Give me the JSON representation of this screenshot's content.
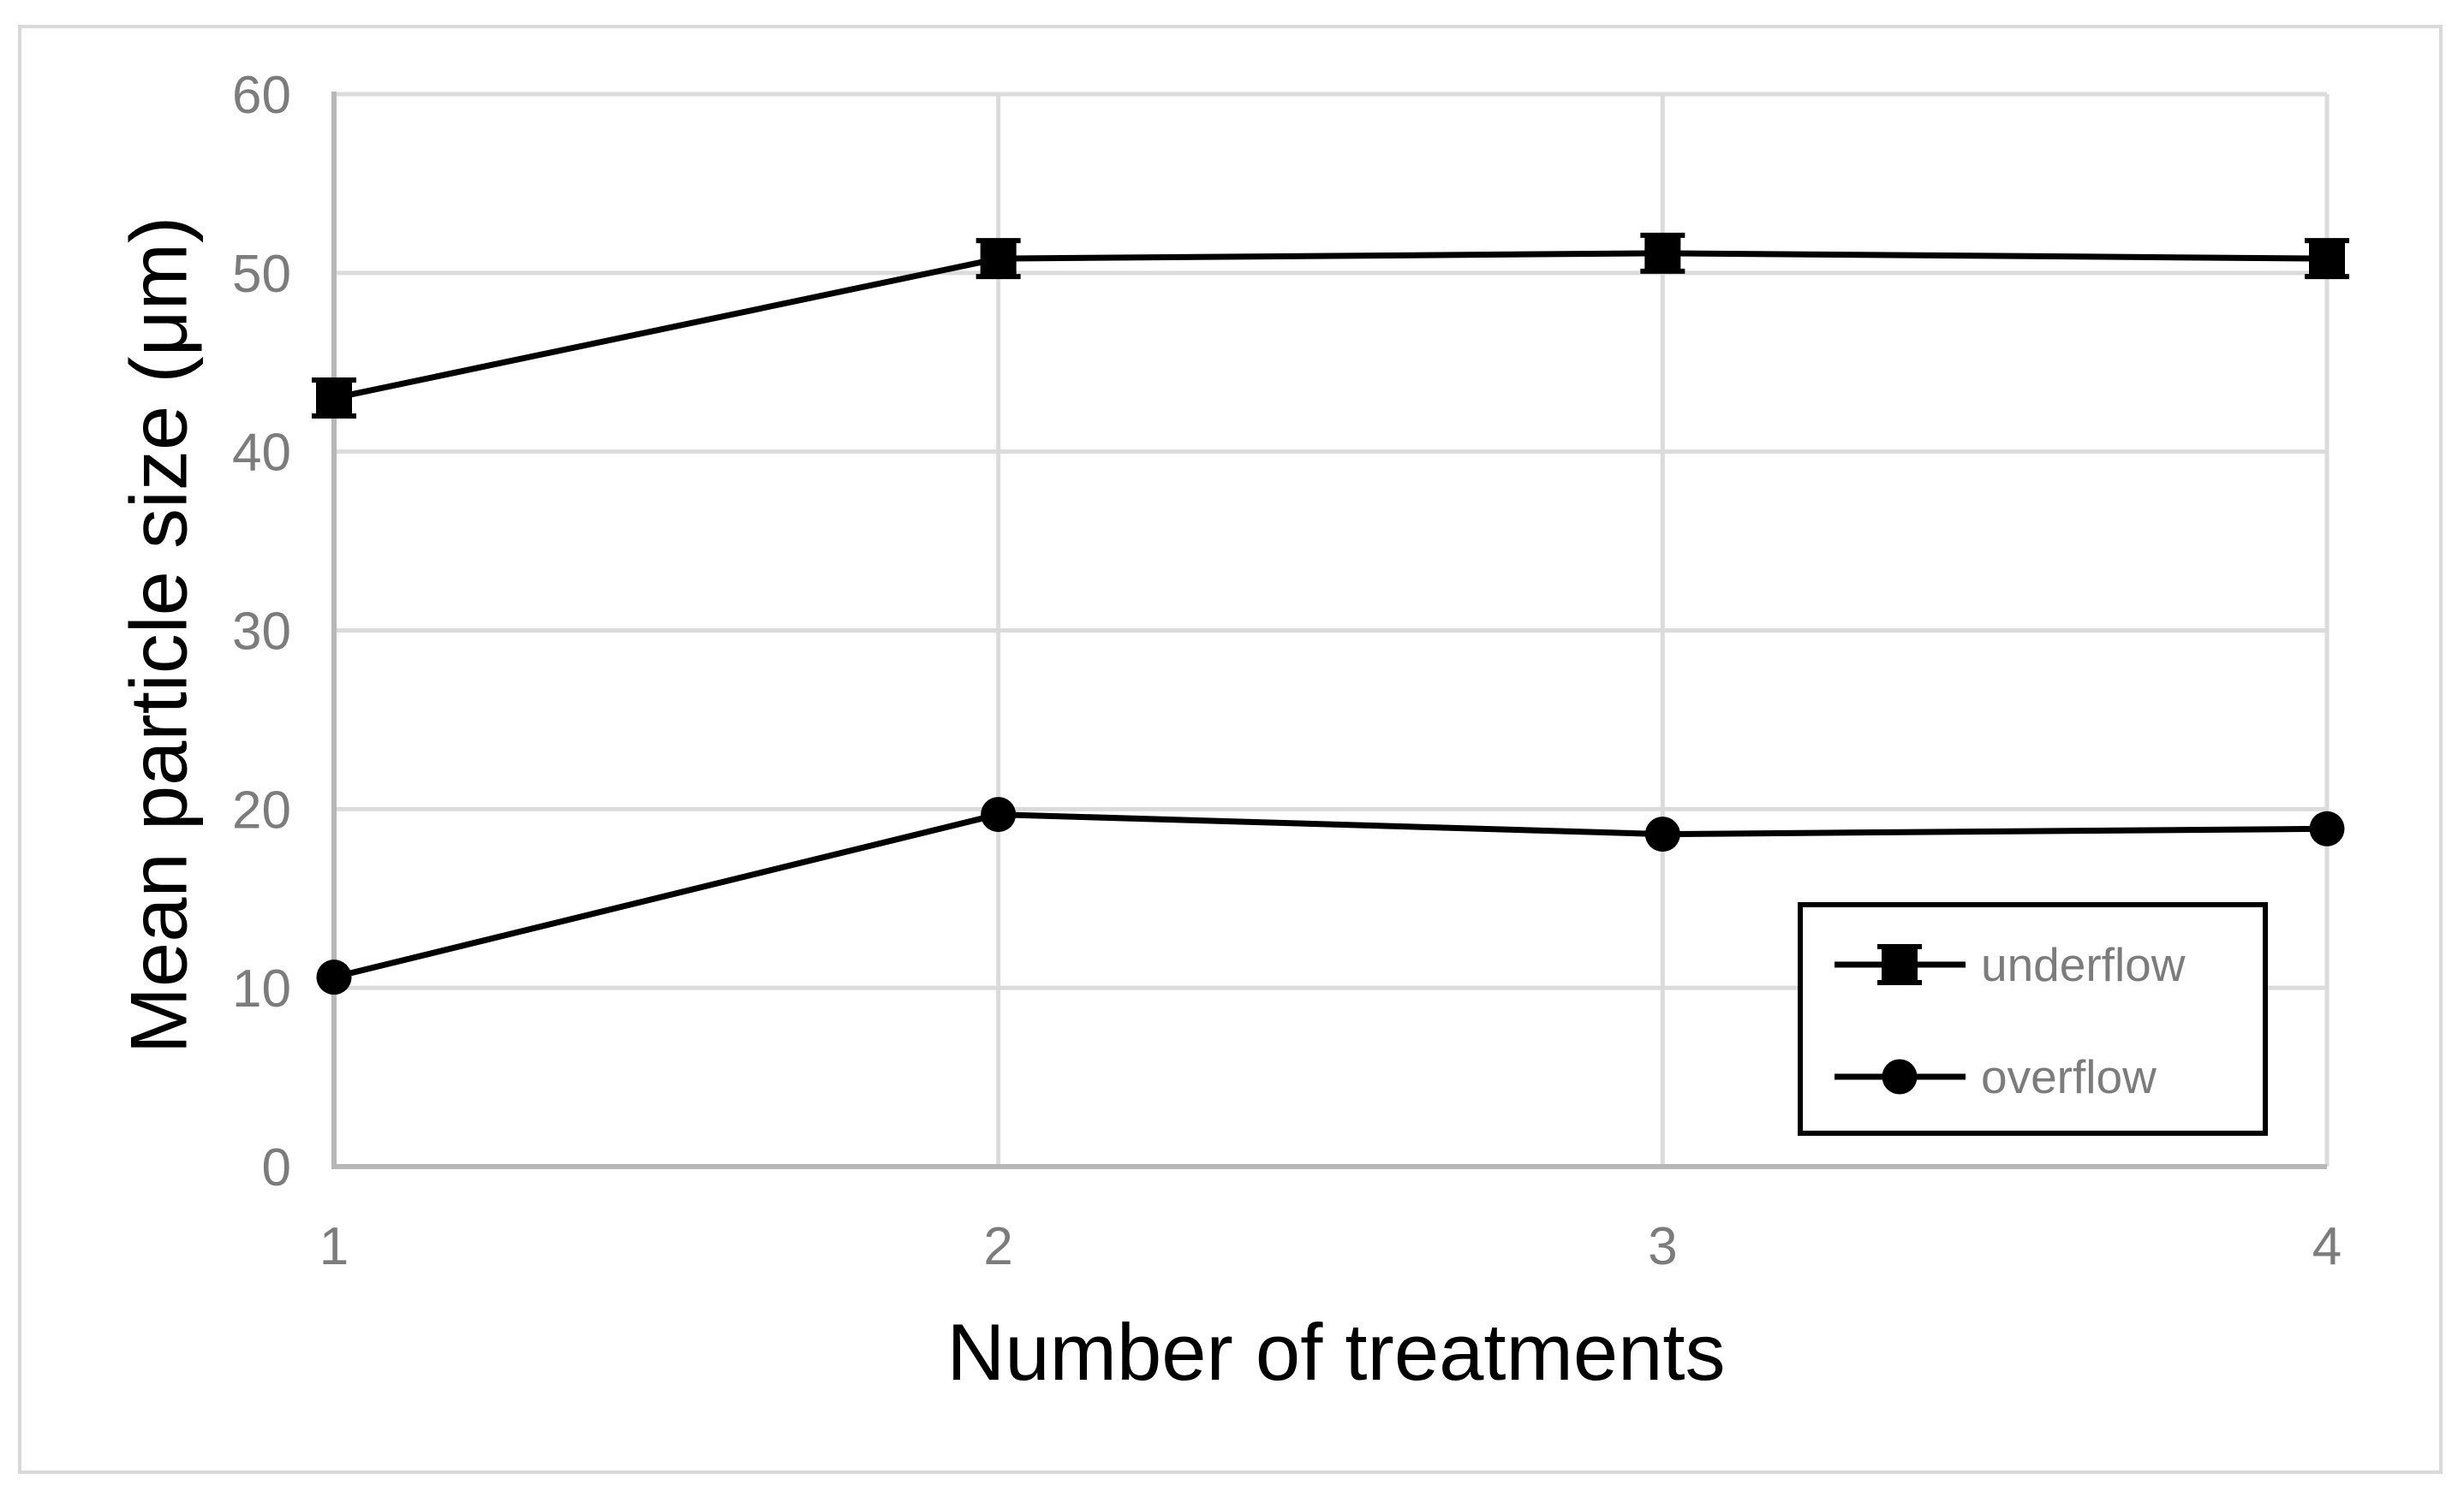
{
  "chart_data": {
    "type": "line",
    "title": "",
    "xlabel": "Number of treatments",
    "ylabel": "Mean particle size (μm)",
    "x": [
      1,
      2,
      3,
      4
    ],
    "series": [
      {
        "name": "underflow",
        "marker": "square",
        "color": "#000000",
        "error_caps": true,
        "values": [
          43.0,
          50.8,
          51.1,
          50.8
        ]
      },
      {
        "name": "overflow",
        "marker": "circle",
        "color": "#000000",
        "error_caps": false,
        "values": [
          10.6,
          19.7,
          18.6,
          18.9
        ]
      }
    ],
    "xlim": [
      1,
      4
    ],
    "ylim": [
      0,
      60
    ],
    "x_ticks": [
      1,
      2,
      3,
      4
    ],
    "y_ticks": [
      0,
      10,
      20,
      30,
      40,
      50,
      60
    ],
    "grid": "on",
    "legend": {
      "labels": [
        "underflow",
        "overflow"
      ],
      "position": "inside-lower-right"
    },
    "colors": {
      "series": "#000000",
      "gridline": "#DBDBDB",
      "axis_line": "#B7B7B7",
      "tick_label": "#7C7C7C",
      "axis_title": "#000000",
      "legend_text": "#7C7C7C",
      "legend_border": "#000000",
      "figure_border": "#D9D9D9",
      "background": "#FFFFFF"
    }
  }
}
